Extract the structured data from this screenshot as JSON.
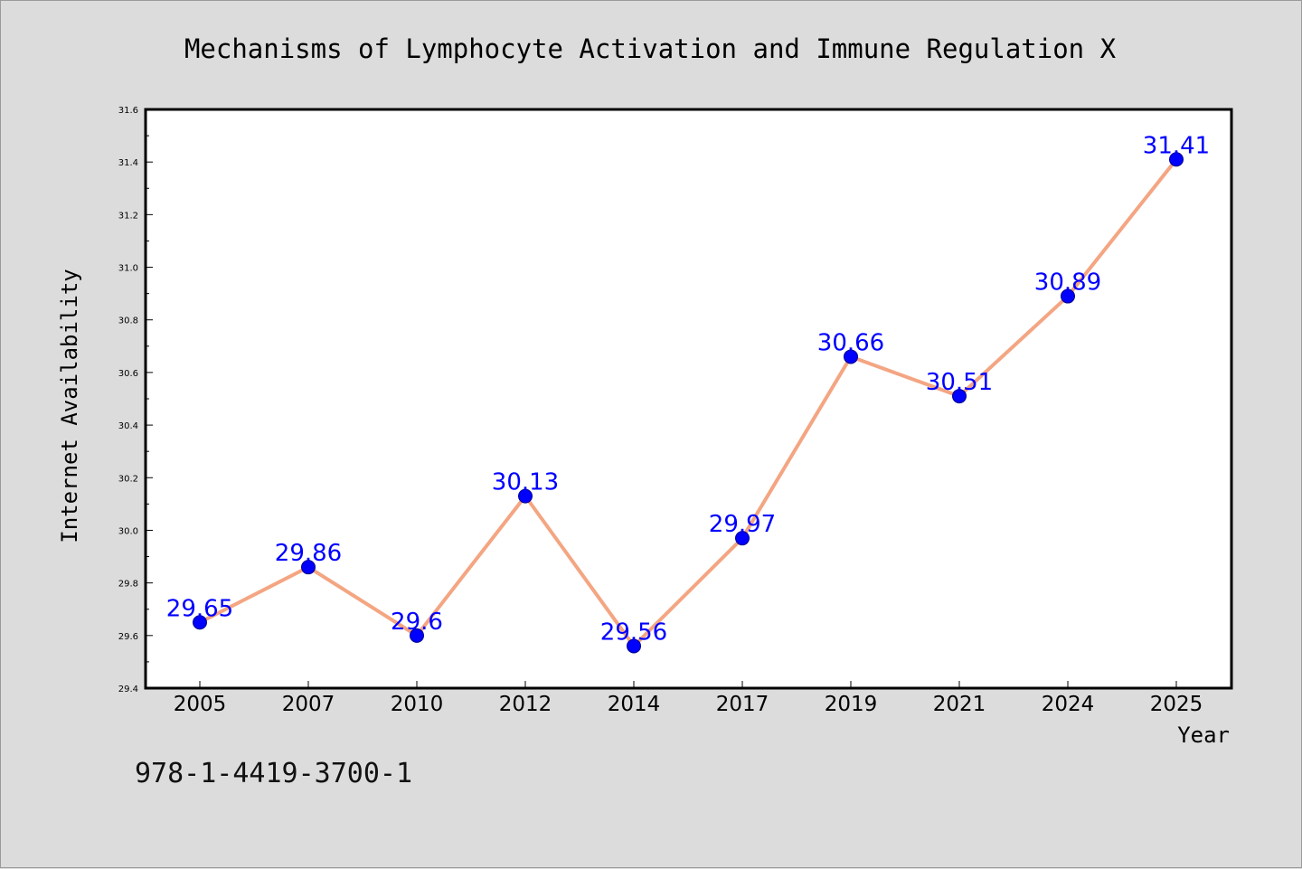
{
  "chart_data": {
    "type": "line",
    "title": "Mechanisms of Lymphocyte Activation and Immune Regulation X",
    "xlabel": "Year",
    "ylabel": "Internet Availability",
    "categories": [
      "2005",
      "2007",
      "2010",
      "2012",
      "2014",
      "2017",
      "2019",
      "2021",
      "2024",
      "2025"
    ],
    "values": [
      29.65,
      29.86,
      29.6,
      30.13,
      29.56,
      29.97,
      30.66,
      30.51,
      30.89,
      31.41
    ],
    "value_labels": [
      "29.65",
      "29.86",
      "29.6",
      "30.13",
      "29.56",
      "29.97",
      "30.66",
      "30.51",
      "30.89",
      "31.41"
    ],
    "ylim": [
      29.4,
      31.6
    ],
    "yticks": [
      "29.4",
      "29.6",
      "29.8",
      "30.0",
      "30.2",
      "30.4",
      "30.6",
      "30.8",
      "31.0",
      "31.2",
      "31.4",
      "31.6"
    ],
    "grid": false,
    "colors": {
      "line": "#f4a582",
      "marker": "#0000ff",
      "labels": "#0000ff",
      "background": "#dcdcdc",
      "plot_background": "#ffffff"
    }
  },
  "footer": {
    "isbn": "978-1-4419-3700-1"
  }
}
